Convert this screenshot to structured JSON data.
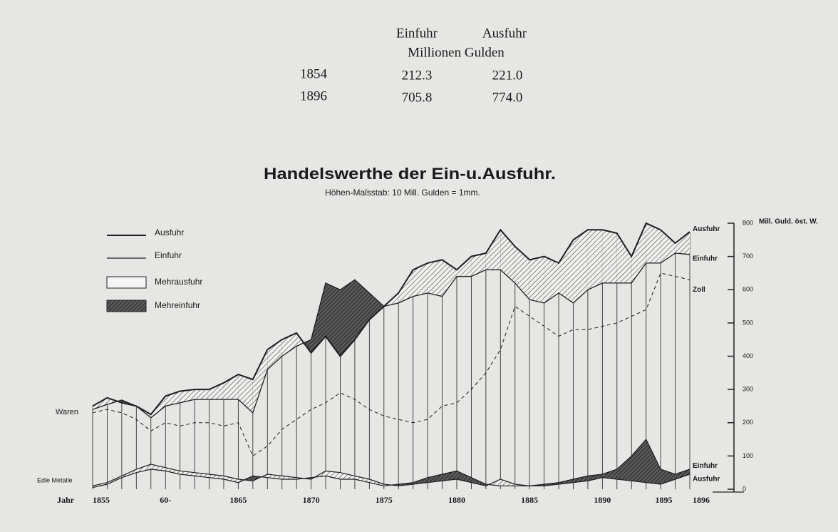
{
  "table": {
    "headers": [
      "Einfuhr",
      "Ausfuhr"
    ],
    "unit": "Millionen Gulden",
    "rows": [
      [
        "1854",
        "212.3",
        "221.0"
      ],
      [
        "1896",
        "705.8",
        "774.0"
      ]
    ]
  },
  "chart_data": {
    "type": "line",
    "title": "Handelswerthe der Ein-u.Ausfuhr.",
    "subtitle": "Höhen-Maſsstab: 10 Mill. Gulden = 1mm.",
    "x_label": "Jahr",
    "y_label": "Mill. Guld. öst. W.",
    "goods_label": "Waren",
    "x": [
      1855,
      1856,
      1857,
      1858,
      1859,
      1860,
      1861,
      1862,
      1863,
      1864,
      1865,
      1866,
      1867,
      1868,
      1869,
      1870,
      1871,
      1872,
      1873,
      1874,
      1875,
      1876,
      1877,
      1878,
      1879,
      1880,
      1881,
      1882,
      1883,
      1884,
      1885,
      1886,
      1887,
      1888,
      1889,
      1890,
      1891,
      1892,
      1893,
      1894,
      1895,
      1896
    ],
    "xlim": [
      1855,
      1896
    ],
    "xticks": [
      {
        "value": 1855,
        "label": "1855"
      },
      {
        "value": 1860,
        "label": "60-"
      },
      1865,
      1870,
      1875,
      1880,
      1885,
      1890,
      1895,
      1896
    ],
    "ylim": [
      0,
      800
    ],
    "yticks": [
      0,
      100,
      200,
      300,
      400,
      500,
      600,
      700,
      800
    ],
    "series": [
      {
        "name": "Ausfuhr",
        "color": "#1e1e1e",
        "values": [
          250,
          275,
          260,
          250,
          225,
          280,
          295,
          300,
          300,
          320,
          345,
          330,
          420,
          450,
          470,
          410,
          460,
          400,
          450,
          510,
          550,
          590,
          660,
          680,
          690,
          660,
          700,
          710,
          780,
          730,
          690,
          700,
          680,
          750,
          780,
          780,
          770,
          700,
          800,
          780,
          740,
          774
        ]
      },
      {
        "name": "Einfuhr",
        "color": "#1e1e1e",
        "values": [
          240,
          255,
          268,
          250,
          215,
          250,
          260,
          270,
          270,
          270,
          270,
          230,
          360,
          400,
          430,
          450,
          620,
          600,
          630,
          590,
          550,
          560,
          580,
          590,
          580,
          640,
          640,
          660,
          660,
          620,
          570,
          560,
          590,
          560,
          600,
          620,
          620,
          620,
          680,
          680,
          710,
          706
        ]
      }
    ],
    "zoll": {
      "name": "Zoll",
      "color": "#1e1e1e",
      "values": [
        230,
        240,
        230,
        210,
        175,
        200,
        190,
        200,
        200,
        190,
        200,
        100,
        130,
        180,
        210,
        240,
        260,
        290,
        270,
        240,
        220,
        210,
        200,
        210,
        250,
        260,
        300,
        350,
        420,
        550,
        520,
        490,
        460,
        480,
        480,
        490,
        500,
        520,
        540,
        650,
        640,
        630
      ]
    },
    "surplus": [
      {
        "name": "Mehrausfuhr",
        "color": "#f4f4f4"
      },
      {
        "name": "Mehreinfuhr",
        "color": "#3a3a3a"
      }
    ],
    "metals": {
      "name": "Edle Metalle",
      "series": [
        {
          "name": "Einfuhr",
          "color": "#1e1e1e",
          "values": [
            5,
            15,
            35,
            50,
            60,
            55,
            45,
            40,
            35,
            30,
            20,
            40,
            35,
            30,
            30,
            35,
            40,
            30,
            30,
            20,
            10,
            15,
            20,
            35,
            45,
            55,
            35,
            15,
            10,
            10,
            10,
            15,
            20,
            30,
            40,
            45,
            60,
            100,
            150,
            60,
            45,
            60
          ]
        },
        {
          "name": "Ausfuhr",
          "color": "#1e1e1e",
          "values": [
            10,
            20,
            40,
            60,
            75,
            65,
            55,
            50,
            45,
            40,
            30,
            25,
            45,
            40,
            35,
            30,
            55,
            50,
            40,
            30,
            15,
            10,
            15,
            20,
            25,
            30,
            20,
            10,
            30,
            15,
            10,
            10,
            15,
            20,
            25,
            35,
            30,
            25,
            20,
            15,
            30,
            45
          ]
        }
      ]
    }
  }
}
